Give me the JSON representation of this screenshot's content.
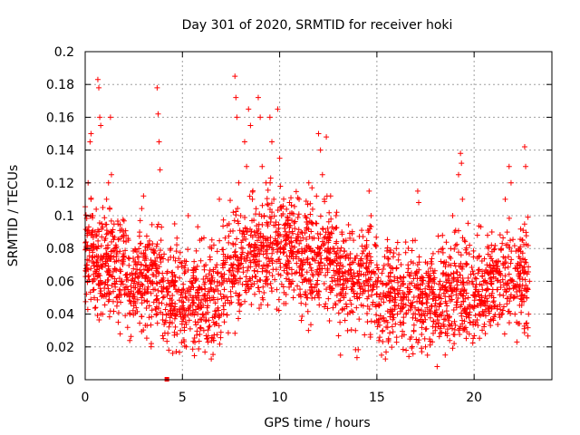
{
  "chart_data": {
    "type": "scatter",
    "title": "Day 301 of 2020, SRMTID for receiver hoki",
    "xlabel": "GPS time / hours",
    "ylabel": "SRMTID / TECUs",
    "xlim": [
      0,
      24
    ],
    "ylim": [
      0,
      0.2
    ],
    "xticks": [
      0,
      5,
      10,
      15,
      20
    ],
    "yticks": [
      0,
      0.02,
      0.04,
      0.06,
      0.08,
      0.1,
      0.12,
      0.14,
      0.16,
      0.18,
      0.2
    ],
    "xtick_labels": [
      "0",
      "5",
      "10",
      "15",
      "20"
    ],
    "ytick_labels": [
      "0",
      "0.02",
      "0.04",
      "0.06",
      "0.08",
      "0.1",
      "0.12",
      "0.14",
      "0.16",
      "0.18",
      "0.2"
    ],
    "grid": true,
    "marker": "+",
    "color": "#ff0000",
    "series": [
      {
        "name": "SRMTID",
        "points": [
          [
            0.1,
            0.088
          ],
          [
            0.1,
            0.07
          ],
          [
            0.15,
            0.12
          ],
          [
            0.2,
            0.09
          ],
          [
            0.25,
            0.145
          ],
          [
            0.3,
            0.15
          ],
          [
            0.3,
            0.11
          ],
          [
            0.35,
            0.1
          ],
          [
            0.4,
            0.06
          ],
          [
            0.45,
            0.055
          ],
          [
            0.5,
            0.075
          ],
          [
            0.55,
            0.065
          ],
          [
            0.6,
            0.08
          ],
          [
            0.65,
            0.183
          ],
          [
            0.7,
            0.178
          ],
          [
            0.75,
            0.16
          ],
          [
            0.8,
            0.155
          ],
          [
            0.85,
            0.095
          ],
          [
            0.9,
            0.04
          ],
          [
            1.0,
            0.085
          ],
          [
            1.05,
            0.072
          ],
          [
            1.1,
            0.11
          ],
          [
            1.2,
            0.12
          ],
          [
            1.3,
            0.16
          ],
          [
            1.35,
            0.125
          ],
          [
            1.4,
            0.09
          ],
          [
            1.5,
            0.08
          ],
          [
            1.6,
            0.05
          ],
          [
            1.7,
            0.035
          ],
          [
            1.8,
            0.028
          ],
          [
            1.9,
            0.06
          ],
          [
            2.0,
            0.075
          ],
          [
            2.1,
            0.088
          ],
          [
            2.2,
            0.055
          ],
          [
            2.3,
            0.04
          ],
          [
            2.4,
            0.065
          ],
          [
            2.5,
            0.045
          ],
          [
            2.6,
            0.07
          ],
          [
            2.7,
            0.058
          ],
          [
            2.8,
            0.09
          ],
          [
            2.9,
            0.05
          ],
          [
            3.0,
            0.112
          ],
          [
            3.1,
            0.075
          ],
          [
            3.2,
            0.06
          ],
          [
            3.3,
            0.045
          ],
          [
            3.4,
            0.022
          ],
          [
            3.5,
            0.055
          ],
          [
            3.6,
            0.07
          ],
          [
            3.7,
            0.178
          ],
          [
            3.75,
            0.162
          ],
          [
            3.8,
            0.145
          ],
          [
            3.85,
            0.128
          ],
          [
            3.9,
            0.085
          ],
          [
            4.0,
            0.05
          ],
          [
            4.1,
            0.035
          ],
          [
            4.2,
            0.065
          ],
          [
            4.3,
            0.018
          ],
          [
            4.4,
            0.08
          ],
          [
            4.5,
            0.06
          ],
          [
            4.6,
            0.095
          ],
          [
            4.7,
            0.04
          ],
          [
            4.8,
            0.055
          ],
          [
            4.9,
            0.03
          ],
          [
            5.0,
            0.045
          ],
          [
            5.1,
            0.065
          ],
          [
            5.2,
            0.02
          ],
          [
            5.3,
            0.1
          ],
          [
            5.4,
            0.06
          ],
          [
            5.5,
            0.04
          ],
          [
            5.6,
            0.072
          ],
          [
            5.7,
            0.05
          ],
          [
            5.8,
            0.035
          ],
          [
            5.9,
            0.085
          ],
          [
            6.0,
            0.055
          ],
          [
            6.1,
            0.03
          ],
          [
            6.2,
            0.07
          ],
          [
            6.3,
            0.045
          ],
          [
            6.4,
            0.06
          ],
          [
            6.5,
            0.08
          ],
          [
            6.6,
            0.05
          ],
          [
            6.7,
            0.04
          ],
          [
            6.8,
            0.065
          ],
          [
            6.9,
            0.11
          ],
          [
            7.0,
            0.058
          ],
          [
            7.1,
            0.045
          ],
          [
            7.2,
            0.075
          ],
          [
            7.3,
            0.06
          ],
          [
            7.4,
            0.095
          ],
          [
            7.5,
            0.07
          ],
          [
            7.6,
            0.083
          ],
          [
            7.7,
            0.185
          ],
          [
            7.75,
            0.172
          ],
          [
            7.8,
            0.16
          ],
          [
            7.9,
            0.12
          ],
          [
            8.0,
            0.1
          ],
          [
            8.1,
            0.085
          ],
          [
            8.2,
            0.145
          ],
          [
            8.3,
            0.13
          ],
          [
            8.4,
            0.165
          ],
          [
            8.5,
            0.155
          ],
          [
            8.6,
            0.11
          ],
          [
            8.7,
            0.09
          ],
          [
            8.8,
            0.075
          ],
          [
            8.9,
            0.172
          ],
          [
            9.0,
            0.16
          ],
          [
            9.1,
            0.13
          ],
          [
            9.2,
            0.1
          ],
          [
            9.3,
            0.12
          ],
          [
            9.4,
            0.085
          ],
          [
            9.5,
            0.16
          ],
          [
            9.6,
            0.145
          ],
          [
            9.7,
            0.11
          ],
          [
            9.8,
            0.09
          ],
          [
            9.9,
            0.165
          ],
          [
            10.0,
            0.135
          ],
          [
            10.1,
            0.1
          ],
          [
            10.2,
            0.08
          ],
          [
            10.3,
            0.07
          ],
          [
            10.4,
            0.095
          ],
          [
            10.5,
            0.06
          ],
          [
            10.6,
            0.075
          ],
          [
            10.7,
            0.05
          ],
          [
            10.8,
            0.065
          ],
          [
            10.9,
            0.085
          ],
          [
            11.0,
            0.11
          ],
          [
            11.1,
            0.09
          ],
          [
            11.2,
            0.07
          ],
          [
            11.3,
            0.1
          ],
          [
            11.4,
            0.06
          ],
          [
            11.5,
            0.12
          ],
          [
            11.6,
            0.08
          ],
          [
            11.7,
            0.095
          ],
          [
            11.8,
            0.05
          ],
          [
            11.9,
            0.075
          ],
          [
            12.0,
            0.15
          ],
          [
            12.1,
            0.14
          ],
          [
            12.2,
            0.125
          ],
          [
            12.3,
            0.11
          ],
          [
            12.4,
            0.148
          ],
          [
            12.5,
            0.09
          ],
          [
            12.6,
            0.07
          ],
          [
            12.7,
            0.06
          ],
          [
            12.8,
            0.08
          ],
          [
            12.9,
            0.1
          ],
          [
            13.0,
            0.065
          ],
          [
            13.1,
            0.035
          ],
          [
            13.2,
            0.09
          ],
          [
            13.3,
            0.05
          ],
          [
            13.4,
            0.075
          ],
          [
            13.5,
            0.04
          ],
          [
            13.6,
            0.07
          ],
          [
            13.7,
            0.06
          ],
          [
            13.8,
            0.085
          ],
          [
            13.9,
            0.03
          ],
          [
            14.0,
            0.065
          ],
          [
            14.1,
            0.05
          ],
          [
            14.2,
            0.07
          ],
          [
            14.3,
            0.045
          ],
          [
            14.4,
            0.08
          ],
          [
            14.5,
            0.06
          ],
          [
            14.6,
            0.115
          ],
          [
            14.7,
            0.1
          ],
          [
            14.8,
            0.055
          ],
          [
            14.9,
            0.035
          ],
          [
            15.0,
            0.07
          ],
          [
            15.1,
            0.045
          ],
          [
            15.2,
            0.06
          ],
          [
            15.3,
            0.03
          ],
          [
            15.4,
            0.075
          ],
          [
            15.5,
            0.05
          ],
          [
            15.6,
            0.025
          ],
          [
            15.7,
            0.065
          ],
          [
            15.8,
            0.04
          ],
          [
            15.9,
            0.055
          ],
          [
            16.0,
            0.08
          ],
          [
            16.1,
            0.045
          ],
          [
            16.2,
            0.035
          ],
          [
            16.3,
            0.06
          ],
          [
            16.4,
            0.05
          ],
          [
            16.5,
            0.04
          ],
          [
            16.6,
            0.07
          ],
          [
            16.7,
            0.055
          ],
          [
            16.8,
            0.045
          ],
          [
            16.9,
            0.03
          ],
          [
            17.0,
            0.065
          ],
          [
            17.1,
            0.115
          ],
          [
            17.15,
            0.108
          ],
          [
            17.2,
            0.05
          ],
          [
            17.3,
            0.04
          ],
          [
            17.4,
            0.035
          ],
          [
            17.5,
            0.02
          ],
          [
            17.6,
            0.015
          ],
          [
            17.7,
            0.06
          ],
          [
            17.8,
            0.045
          ],
          [
            17.9,
            0.055
          ],
          [
            18.0,
            0.03
          ],
          [
            18.1,
            0.008
          ],
          [
            18.2,
            0.05
          ],
          [
            18.3,
            0.04
          ],
          [
            18.4,
            0.065
          ],
          [
            18.5,
            0.055
          ],
          [
            18.6,
            0.045
          ],
          [
            18.7,
            0.07
          ],
          [
            18.8,
            0.08
          ],
          [
            18.9,
            0.1
          ],
          [
            19.0,
            0.09
          ],
          [
            19.1,
            0.06
          ],
          [
            19.2,
            0.125
          ],
          [
            19.3,
            0.138
          ],
          [
            19.35,
            0.132
          ],
          [
            19.4,
            0.11
          ],
          [
            19.5,
            0.085
          ],
          [
            19.6,
            0.07
          ],
          [
            19.7,
            0.05
          ],
          [
            19.8,
            0.035
          ],
          [
            19.9,
            0.06
          ],
          [
            20.0,
            0.045
          ],
          [
            20.1,
            0.055
          ],
          [
            20.2,
            0.065
          ],
          [
            20.3,
            0.04
          ],
          [
            20.4,
            0.05
          ],
          [
            20.5,
            0.06
          ],
          [
            20.6,
            0.045
          ],
          [
            20.7,
            0.055
          ],
          [
            20.8,
            0.07
          ],
          [
            20.9,
            0.06
          ],
          [
            21.0,
            0.05
          ],
          [
            21.1,
            0.045
          ],
          [
            21.2,
            0.055
          ],
          [
            21.3,
            0.065
          ],
          [
            21.4,
            0.08
          ],
          [
            21.5,
            0.07
          ],
          [
            21.6,
            0.11
          ],
          [
            21.7,
            0.09
          ],
          [
            21.8,
            0.13
          ],
          [
            21.9,
            0.12
          ],
          [
            22.0,
            0.06
          ],
          [
            22.1,
            0.04
          ],
          [
            22.2,
            0.023
          ],
          [
            22.3,
            0.075
          ],
          [
            22.4,
            0.065
          ],
          [
            22.5,
            0.085
          ],
          [
            22.6,
            0.142
          ],
          [
            22.65,
            0.13
          ],
          [
            22.7,
            0.05
          ],
          [
            22.8,
            0.04
          ],
          [
            22.85,
            0.06
          ]
        ]
      }
    ],
    "noise_band": {
      "comment": "dense cloud of additional points rendered procedurally from these statistics",
      "count": 2600,
      "seed": 301
    }
  }
}
